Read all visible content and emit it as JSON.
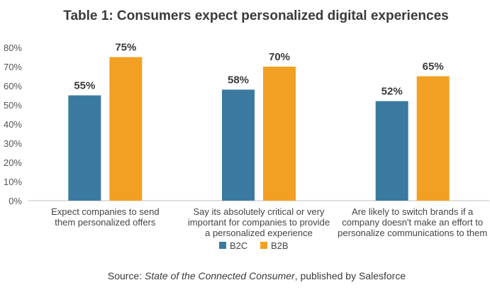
{
  "chart_data": {
    "type": "bar",
    "title": "Table 1: Consumers expect personalized digital experiences",
    "categories": [
      [
        "Expect companies to send",
        "them personalized offers"
      ],
      [
        "Say its absolutely critical or very",
        "important for companies to provide",
        "a personalized experience"
      ],
      [
        "Are likely to switch brands if a",
        "company doesn't make an effort to",
        "personalize communications to them"
      ]
    ],
    "series": [
      {
        "name": "B2C",
        "color": "#3b7aa0",
        "values": [
          55,
          58,
          52
        ]
      },
      {
        "name": "B2B",
        "color": "#f2a024",
        "values": [
          75,
          70,
          65
        ]
      }
    ],
    "ylim": [
      0,
      80
    ],
    "yticks": [
      0,
      10,
      20,
      30,
      40,
      50,
      60,
      70,
      80
    ],
    "tick_suffix": "%",
    "value_suffix": "%",
    "legend_position": "bottom-center",
    "grid": false
  },
  "source": {
    "prefix": "Source: ",
    "italic": "State of the Connected Consumer",
    "suffix": ", published by Salesforce"
  }
}
